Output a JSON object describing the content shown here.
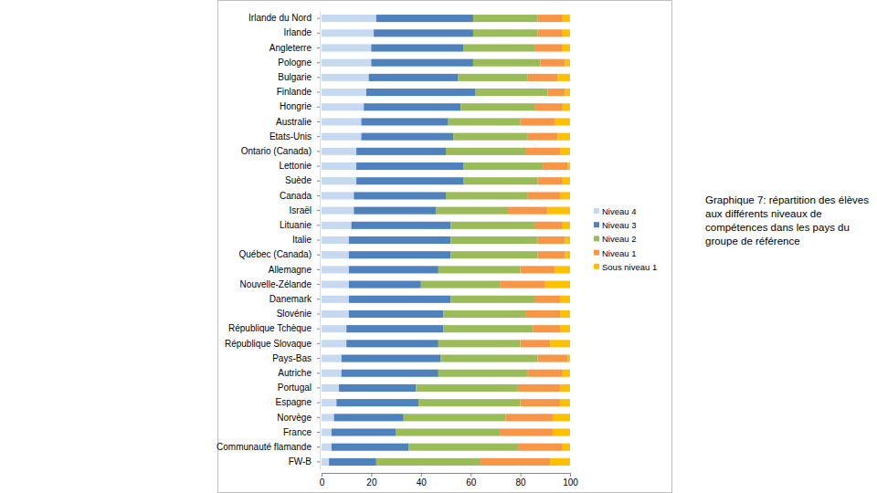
{
  "chart_data": {
    "type": "bar",
    "orientation": "horizontal",
    "stacked": true,
    "title": "Graphique 7: répartition des élèves aux différents niveaux de compétences dans les pays du groupe de référence",
    "categories": [
      "Irlande du Nord",
      "Irlande",
      "Angleterre",
      "Pologne",
      "Bulgarie",
      "Finlande",
      "Hongrie",
      "Australie",
      "Etats-Unis",
      "Ontario (Canada)",
      "Lettonie",
      "Suède",
      "Canada",
      "Israël",
      "Lituanie",
      "Italie",
      "Québec (Canada)",
      "Allemagne",
      "Nouvelle-Zélande",
      "Danemark",
      "Slovénie",
      "République Tchèque",
      "République Slovaque",
      "Pays-Bas",
      "Autriche",
      "Portugal",
      "Espagne",
      "Norvège",
      "France",
      "Communauté flamande",
      "FW-B"
    ],
    "series": [
      {
        "name": "Niveau 4",
        "color": "#c6d9f1",
        "values": [
          22,
          21,
          20,
          20,
          19,
          18,
          17,
          16,
          16,
          14,
          14,
          14,
          13,
          13,
          12,
          11,
          11,
          11,
          11,
          11,
          11,
          10,
          10,
          8,
          8,
          7,
          6,
          5,
          4,
          4,
          3
        ]
      },
      {
        "name": "Niveau 3",
        "color": "#4f81bd",
        "values": [
          39,
          40,
          37,
          41,
          36,
          44,
          39,
          35,
          37,
          36,
          43,
          43,
          37,
          33,
          40,
          41,
          41,
          36,
          29,
          41,
          38,
          39,
          37,
          40,
          39,
          31,
          33,
          28,
          26,
          31,
          19
        ]
      },
      {
        "name": "Niveau 2",
        "color": "#9bbb59",
        "values": [
          26,
          26,
          29,
          27,
          28,
          29,
          30,
          29,
          30,
          32,
          32,
          30,
          33,
          29,
          34,
          35,
          35,
          33,
          32,
          34,
          33,
          36,
          33,
          39,
          36,
          41,
          41,
          41,
          42,
          44,
          42
        ]
      },
      {
        "name": "Niveau 1",
        "color": "#f79646",
        "values": [
          10,
          10,
          11,
          10,
          12,
          7,
          11,
          14,
          12,
          14,
          10,
          10,
          13,
          16,
          11,
          11,
          11,
          14,
          18,
          10,
          14,
          11,
          12,
          12,
          14,
          17,
          16,
          19,
          21,
          18,
          28
        ]
      },
      {
        "name": "Sous niveau 1",
        "color": "#ffc000",
        "values": [
          3,
          3,
          3,
          2,
          5,
          2,
          3,
          6,
          5,
          4,
          1,
          3,
          4,
          9,
          3,
          2,
          2,
          6,
          10,
          4,
          4,
          4,
          8,
          1,
          3,
          4,
          4,
          7,
          7,
          3,
          8
        ]
      }
    ],
    "xlim": [
      0,
      100
    ],
    "xticks": [
      0,
      20,
      40,
      60,
      80,
      100
    ],
    "grid": false,
    "legend": "right"
  }
}
